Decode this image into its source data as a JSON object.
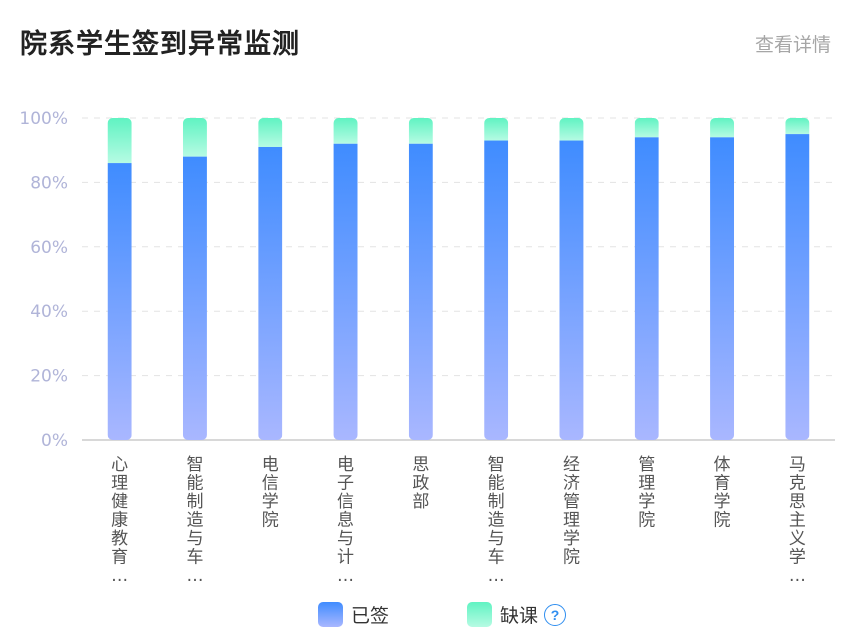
{
  "header": {
    "title": "院系学生签到异常监测",
    "detail_label": "查看详情"
  },
  "legend": {
    "signed_label": "已签",
    "absent_label": "缺课",
    "help_icon": "question-circle-icon"
  },
  "colors": {
    "signed_top": "#3f8cff",
    "signed_bottom": "#a9b7ff",
    "absent_top": "#60f3c2",
    "absent_bottom": "#b6fbe3",
    "axis_label": "#b0b4d8",
    "grid": "#e3e3e3",
    "axis": "#cccccc",
    "category_label": "#555555"
  },
  "chart_data": {
    "type": "bar",
    "stacked": true,
    "categories": [
      [
        "心",
        "理",
        "健",
        "康",
        "教",
        "育",
        "…"
      ],
      [
        "智",
        "能",
        "制",
        "造",
        "与",
        "车",
        "…"
      ],
      [
        "电",
        "信",
        "学",
        "院"
      ],
      [
        "电",
        "子",
        "信",
        "息",
        "与",
        "计",
        "…"
      ],
      [
        "思",
        "政",
        "部"
      ],
      [
        "智",
        "能",
        "制",
        "造",
        "与",
        "车",
        "…"
      ],
      [
        "经",
        "济",
        "管",
        "理",
        "学",
        "院"
      ],
      [
        "管",
        "理",
        "学",
        "院"
      ],
      [
        "体",
        "育",
        "学",
        "院"
      ],
      [
        "马",
        "克",
        "思",
        "主",
        "义",
        "学",
        "…"
      ]
    ],
    "series": [
      {
        "name": "已签",
        "values": [
          86,
          88,
          91,
          92,
          92,
          93,
          93,
          94,
          94,
          95
        ]
      },
      {
        "name": "缺课",
        "values": [
          14,
          12,
          9,
          8,
          8,
          7,
          7,
          6,
          6,
          5
        ]
      }
    ],
    "ylim": [
      0,
      100
    ],
    "yticks": [
      "0%",
      "20%",
      "40%",
      "60%",
      "80%",
      "100%"
    ],
    "grid": true,
    "legend_position": "bottom"
  }
}
